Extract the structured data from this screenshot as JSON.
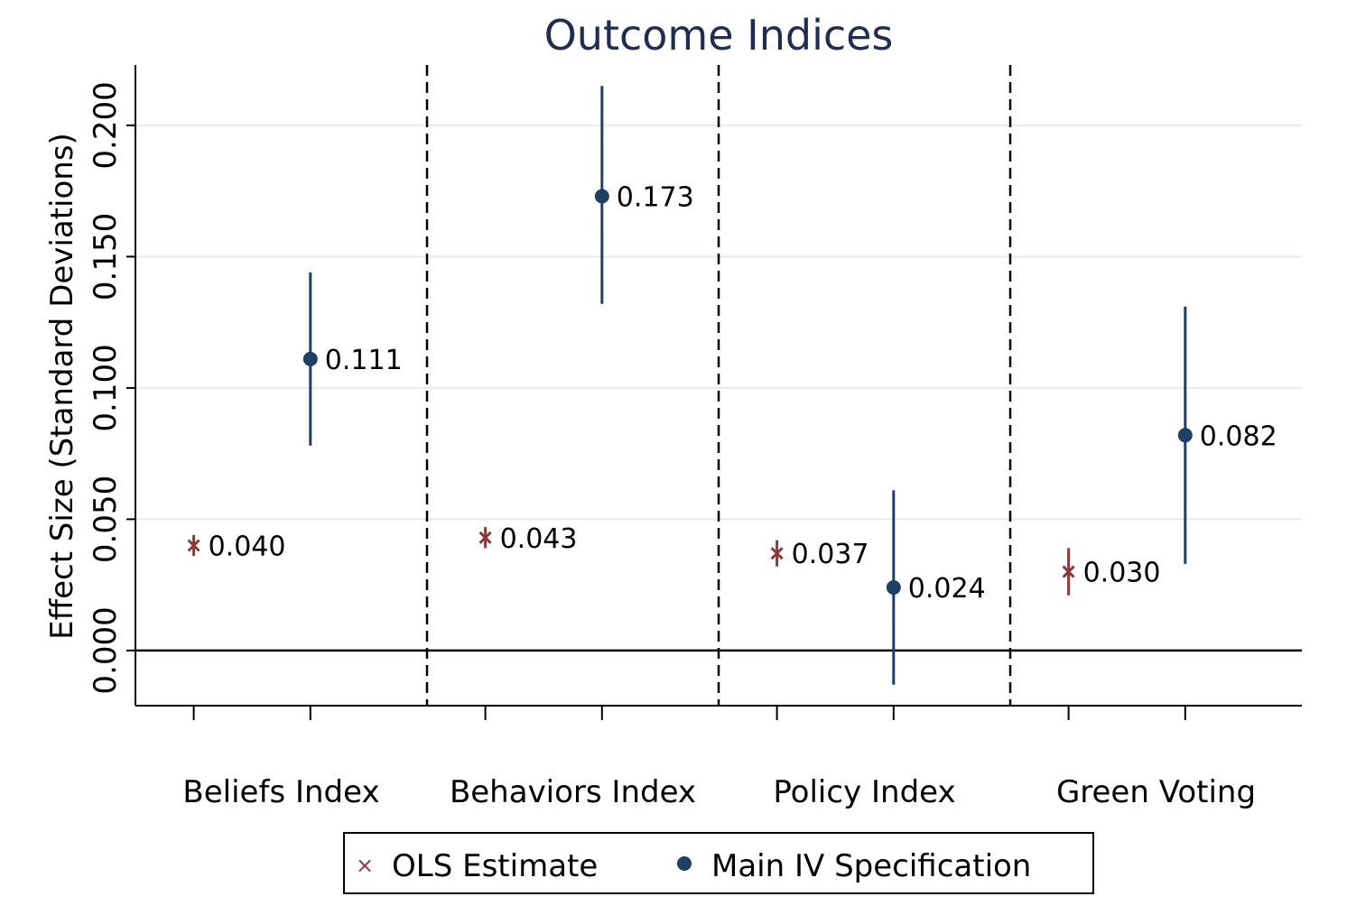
{
  "chart_data": {
    "type": "scatter",
    "title": "Outcome Indices",
    "ylabel": "Effect Size (Standard Deviations)",
    "xlabel": "",
    "ylim": [
      -0.021,
      0.223
    ],
    "yticks": [
      0.0,
      0.05,
      0.1,
      0.15,
      0.2
    ],
    "ytick_labels": [
      "0.000",
      "0.050",
      "0.100",
      "0.150",
      "0.200"
    ],
    "grid": true,
    "categories": [
      "Beliefs Index",
      "Behaviors Index",
      "Policy Index",
      "Green Voting"
    ],
    "series": [
      {
        "name": "OLS Estimate",
        "marker": "x",
        "color": "#8b3a3a",
        "values": [
          0.04,
          0.043,
          0.037,
          0.03
        ],
        "labels": [
          "0.040",
          "0.043",
          "0.037",
          "0.030"
        ],
        "ci_low": [
          0.036,
          0.039,
          0.032,
          0.021
        ],
        "ci_high": [
          0.044,
          0.047,
          0.042,
          0.039
        ]
      },
      {
        "name": "Main IV Specification",
        "marker": "circle",
        "color": "#1f3f66",
        "values": [
          0.111,
          0.173,
          0.024,
          0.082
        ],
        "labels": [
          "0.111",
          "0.173",
          "0.024",
          "0.082"
        ],
        "ci_low": [
          0.078,
          0.132,
          -0.013,
          0.033
        ],
        "ci_high": [
          0.144,
          0.215,
          0.061,
          0.131
        ]
      }
    ],
    "legend_position": "bottom"
  },
  "colors": {
    "title": "#1f2d52",
    "grid": "#e4ecec",
    "axis": "#000000"
  }
}
